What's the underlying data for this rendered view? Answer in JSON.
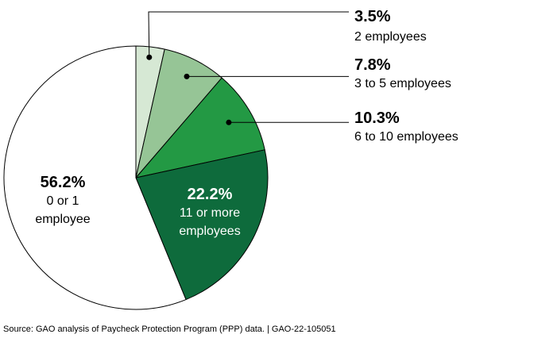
{
  "chart_data": {
    "type": "pie",
    "start_angle_deg": 0,
    "direction": "clockwise",
    "slices": [
      {
        "value": 3.5,
        "label": "3.5%",
        "description": [
          "2 employees"
        ],
        "color": "#d6e8d4"
      },
      {
        "value": 7.8,
        "label": "7.8%",
        "description": [
          "3 to 5 employees"
        ],
        "color": "#96c596"
      },
      {
        "value": 10.3,
        "label": "10.3%",
        "description": [
          "6 to 10 employees"
        ],
        "color": "#239944"
      },
      {
        "value": 22.2,
        "label": "22.2%",
        "description": [
          "11 or more",
          "employees"
        ],
        "color": "#0e6b3c"
      },
      {
        "value": 56.2,
        "label": "56.2%",
        "description": [
          "0 or 1",
          "employee"
        ],
        "color": "#ffffff"
      }
    ],
    "stroke_color": "#000000"
  },
  "source": "Source: GAO analysis of Paycheck Protection Program (PPP) data.  |  GAO-22-105051"
}
